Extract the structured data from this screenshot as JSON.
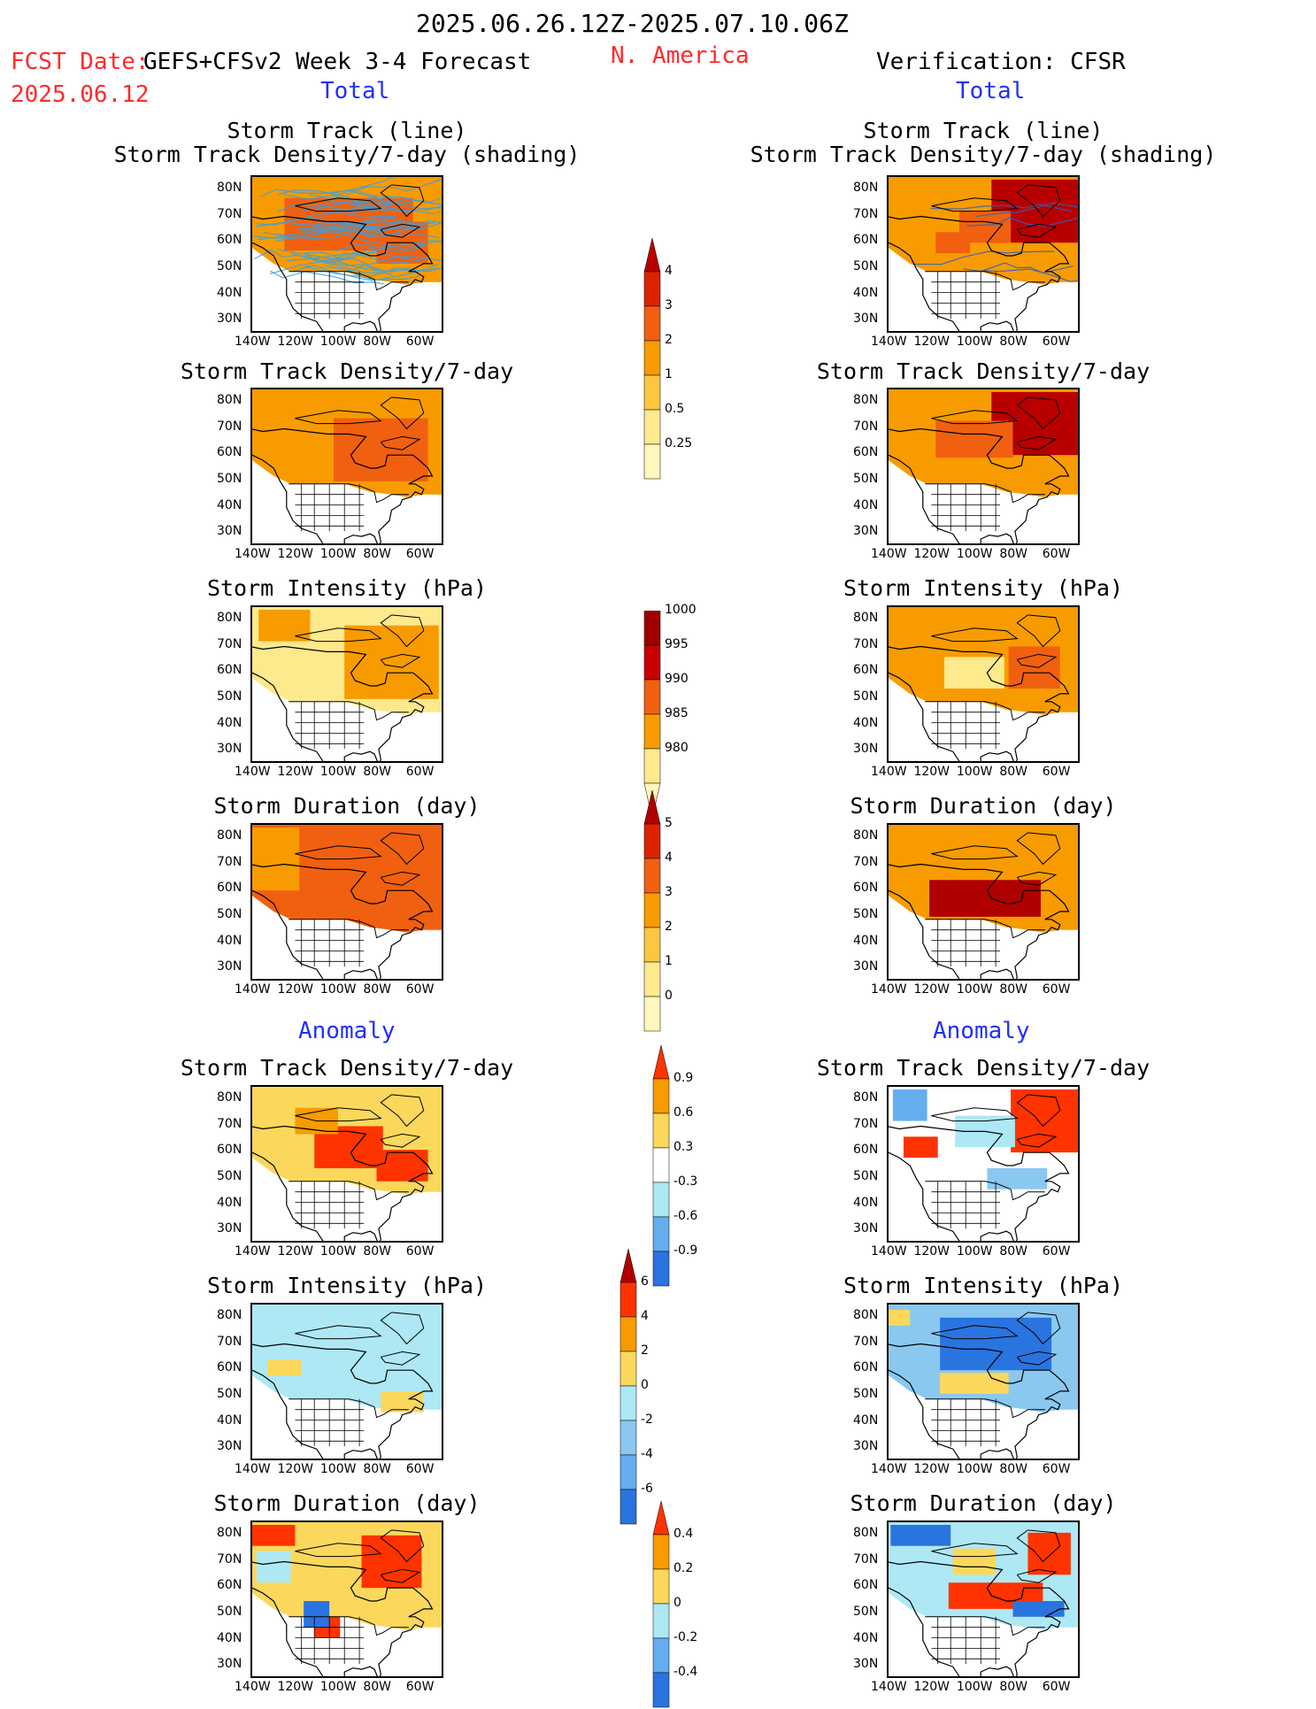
{
  "header": {
    "period": "2025.06.26.12Z-2025.07.10.06Z",
    "fcst_date_label": "FCST Date:",
    "forecast_name": "GEFS+CFSv2 Week 3-4 Forecast",
    "fcst_date": "2025.06.12",
    "region": "N. America",
    "verification": "Verification: CFSR",
    "total_left": "Total",
    "total_right": "Total",
    "anomaly_left": "Anomaly",
    "anomaly_right": "Anomaly"
  },
  "panel_titles": {
    "track_line": "Storm Track (line)",
    "track_shading": "Storm Track Density/7-day (shading)",
    "density": "Storm Track Density/7-day",
    "intensity": "Storm Intensity (hPa)",
    "duration": "Storm Duration (day)"
  },
  "axes": {
    "lat_labels": [
      "80N",
      "70N",
      "60N",
      "50N",
      "40N",
      "30N"
    ],
    "lon_labels": [
      "140W",
      "120W",
      "100W",
      "80W",
      "60W"
    ],
    "lat_range": [
      25,
      85
    ],
    "lon_range": [
      -140,
      -50
    ]
  },
  "colorbars": {
    "density": {
      "labels": [
        "4",
        "3",
        "2",
        "1",
        "0.5",
        "0.25"
      ],
      "colors": [
        "#b80000",
        "#dd2200",
        "#f06010",
        "#f89b00",
        "#fbc640",
        "#fee98c",
        "#fff7bb"
      ]
    },
    "intensity": {
      "labels": [
        "1000",
        "995",
        "990",
        "985",
        "980"
      ],
      "colors": [
        "#fff7bb",
        "#fee98c",
        "#f89b00",
        "#f06010",
        "#c80000",
        "#a00000"
      ]
    },
    "duration": {
      "labels": [
        "5",
        "4",
        "3",
        "2",
        "1",
        "0"
      ],
      "colors": [
        "#b00000",
        "#dd2200",
        "#f06010",
        "#f89b00",
        "#fbc640",
        "#fee98c",
        "#fff7bb"
      ]
    },
    "anom_density": {
      "labels": [
        "0.9",
        "0.6",
        "0.3",
        "-0.3",
        "-0.6",
        "-0.9"
      ],
      "colors": [
        "#ff3300",
        "#f89b00",
        "#fbd85c",
        "#ffffff",
        "#aee8f5",
        "#64aef0",
        "#2a74e0"
      ]
    },
    "anom_intensity": {
      "labels": [
        "6",
        "4",
        "2",
        "0",
        "-2",
        "-4",
        "-6"
      ],
      "colors": [
        "#b00000",
        "#ff3300",
        "#f89b00",
        "#fbd85c",
        "#aee8f5",
        "#8ac8f0",
        "#64aef0",
        "#2a74e0"
      ]
    },
    "anom_duration": {
      "labels": [
        "0.4",
        "0.2",
        "0",
        "-0.2",
        "-0.4"
      ],
      "colors": [
        "#ff3300",
        "#f89b00",
        "#fbd85c",
        "#aee8f5",
        "#64aef0",
        "#2a74e0"
      ]
    }
  },
  "panels": [
    {
      "id": "L1",
      "title_key": "track_line",
      "title2_key": "track_shading",
      "tracks": true,
      "fill": "#f89b00",
      "blobs": [
        {
          "c": [
            -95,
            67
          ],
          "r": [
            30,
            10
          ],
          "color": "#f06010"
        },
        {
          "c": [
            -70,
            60
          ],
          "r": [
            12,
            8
          ],
          "color": "#f06010"
        }
      ],
      "fill_region": "north"
    },
    {
      "id": "R1",
      "title_key": "track_line",
      "title2_key": "track_shading",
      "tracks": true,
      "fill": "#f89b00",
      "blobs": [
        {
          "c": [
            -70,
            72
          ],
          "r": [
            22,
            12
          ],
          "color": "#b80000"
        },
        {
          "c": [
            -95,
            66
          ],
          "r": [
            12,
            6
          ],
          "color": "#f06010"
        },
        {
          "c": [
            -110,
            60
          ],
          "r": [
            8,
            4
          ],
          "color": "#f06010"
        }
      ],
      "fill_region": "north"
    },
    {
      "id": "L2",
      "title_key": "density",
      "fill": "#f89b00",
      "blobs": [
        {
          "c": [
            -80,
            62
          ],
          "r": [
            22,
            12
          ],
          "color": "#f06010"
        }
      ],
      "fill_region": "north"
    },
    {
      "id": "R2",
      "title_key": "density",
      "fill": "#f89b00",
      "blobs": [
        {
          "c": [
            -68,
            72
          ],
          "r": [
            24,
            12
          ],
          "color": "#b80000"
        },
        {
          "c": [
            -100,
            66
          ],
          "r": [
            18,
            7
          ],
          "color": "#f06010"
        }
      ],
      "fill_region": "north"
    },
    {
      "id": "L3",
      "title_key": "intensity",
      "fill": "#fee98c",
      "blobs": [
        {
          "c": [
            -75,
            64
          ],
          "r": [
            22,
            14
          ],
          "color": "#f89b00"
        },
        {
          "c": [
            -125,
            78
          ],
          "r": [
            12,
            6
          ],
          "color": "#f89b00"
        }
      ],
      "fill_region": "north"
    },
    {
      "id": "R3",
      "title_key": "intensity",
      "fill": "#f89b00",
      "blobs": [
        {
          "c": [
            -100,
            60
          ],
          "r": [
            14,
            6
          ],
          "color": "#fee98c"
        },
        {
          "c": [
            -72,
            62
          ],
          "r": [
            12,
            8
          ],
          "color": "#f06010"
        }
      ],
      "fill_region": "north"
    },
    {
      "id": "L4",
      "title_key": "duration",
      "fill": "#f06010",
      "blobs": [
        {
          "c": [
            -130,
            72
          ],
          "r": [
            12,
            12
          ],
          "color": "#f89b00"
        }
      ],
      "fill_region": "north"
    },
    {
      "id": "R4",
      "title_key": "duration",
      "fill": "#f89b00",
      "blobs": [
        {
          "c": [
            -95,
            57
          ],
          "r": [
            26,
            7
          ],
          "color": "#b00000"
        }
      ],
      "fill_region": "north"
    },
    {
      "id": "L5",
      "title_key": "density",
      "fill": "#fbd85c",
      "blobs": [
        {
          "c": [
            -95,
            62
          ],
          "r": [
            16,
            8
          ],
          "color": "#ff3300"
        },
        {
          "c": [
            -70,
            55
          ],
          "r": [
            12,
            6
          ],
          "color": "#ff3300"
        },
        {
          "c": [
            -110,
            72
          ],
          "r": [
            10,
            5
          ],
          "color": "#f89b00"
        }
      ],
      "fill_region": "north"
    },
    {
      "id": "R5",
      "title_key": "density",
      "fill": "#ffffff",
      "blobs": [
        {
          "c": [
            -65,
            72
          ],
          "r": [
            18,
            12
          ],
          "color": "#ff3300"
        },
        {
          "c": [
            -125,
            62
          ],
          "r": [
            8,
            4
          ],
          "color": "#ff3300"
        },
        {
          "c": [
            -95,
            68
          ],
          "r": [
            14,
            6
          ],
          "color": "#aee8f5"
        },
        {
          "c": [
            -130,
            78
          ],
          "r": [
            8,
            6
          ],
          "color": "#64aef0"
        },
        {
          "c": [
            -80,
            50
          ],
          "r": [
            14,
            4
          ],
          "color": "#8ac8f0"
        }
      ],
      "fill_region": "north"
    },
    {
      "id": "L6",
      "title_key": "intensity",
      "fill": "#aee8f5",
      "blobs": [
        {
          "c": [
            -125,
            61
          ],
          "r": [
            8,
            3
          ],
          "color": "#fbd85c"
        },
        {
          "c": [
            -70,
            48
          ],
          "r": [
            10,
            4
          ],
          "color": "#fbd85c"
        }
      ],
      "fill_region": "north"
    },
    {
      "id": "R6",
      "title_key": "intensity",
      "fill": "#8ac8f0",
      "blobs": [
        {
          "c": [
            -90,
            70
          ],
          "r": [
            26,
            10
          ],
          "color": "#2a74e0"
        },
        {
          "c": [
            -100,
            55
          ],
          "r": [
            16,
            4
          ],
          "color": "#fbd85c"
        },
        {
          "c": [
            -135,
            80
          ],
          "r": [
            5,
            3
          ],
          "color": "#fbd85c"
        }
      ],
      "fill_region": "north"
    },
    {
      "id": "L7",
      "title_key": "duration",
      "fill": "#fbd85c",
      "blobs": [
        {
          "c": [
            -75,
            70
          ],
          "r": [
            14,
            10
          ],
          "color": "#ff3300"
        },
        {
          "c": [
            -130,
            80
          ],
          "r": [
            10,
            4
          ],
          "color": "#ff3300"
        },
        {
          "c": [
            -105,
            45
          ],
          "r": [
            6,
            4
          ],
          "color": "#ff3300"
        },
        {
          "c": [
            -130,
            68
          ],
          "r": [
            8,
            6
          ],
          "color": "#aee8f5"
        },
        {
          "c": [
            -110,
            50
          ],
          "r": [
            6,
            5
          ],
          "color": "#2a74e0"
        }
      ],
      "fill_region": "north"
    },
    {
      "id": "R7",
      "title_key": "duration",
      "fill": "#aee8f5",
      "blobs": [
        {
          "c": [
            -125,
            80
          ],
          "r": [
            14,
            4
          ],
          "color": "#2a74e0"
        },
        {
          "c": [
            -90,
            57
          ],
          "r": [
            22,
            5
          ],
          "color": "#ff3300"
        },
        {
          "c": [
            -65,
            73
          ],
          "r": [
            10,
            8
          ],
          "color": "#ff3300"
        },
        {
          "c": [
            -100,
            70
          ],
          "r": [
            10,
            5
          ],
          "color": "#fbd85c"
        },
        {
          "c": [
            -70,
            52
          ],
          "r": [
            12,
            3
          ],
          "color": "#2a74e0"
        }
      ],
      "fill_region": "north"
    }
  ]
}
